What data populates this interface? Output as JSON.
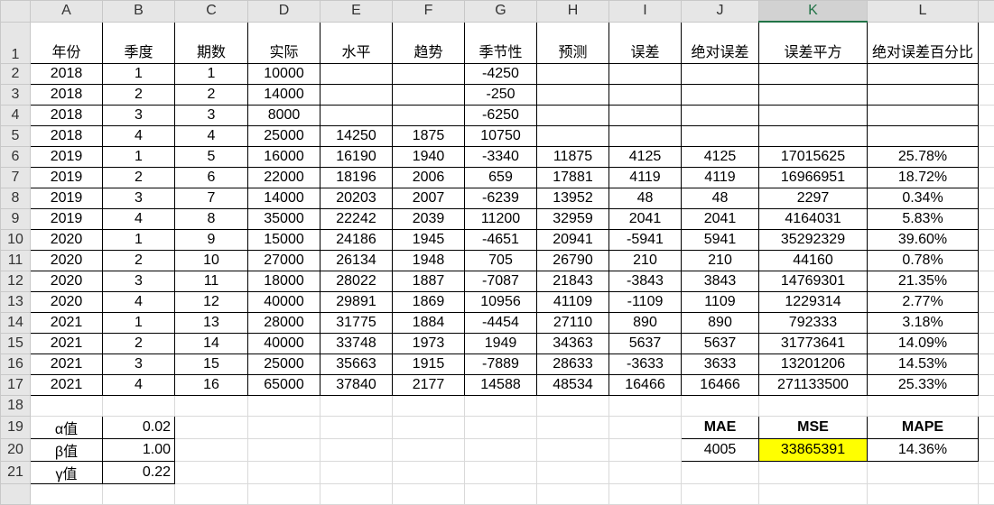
{
  "sheet": {
    "columns": [
      "A",
      "B",
      "C",
      "D",
      "E",
      "F",
      "G",
      "H",
      "I",
      "J",
      "K",
      "L",
      ""
    ],
    "selected_column": "K",
    "headers": [
      "年份",
      "季度",
      "期数",
      "实际",
      "水平",
      "趋势",
      "季节性",
      "预测",
      "误差",
      "绝对误差",
      "误差平方",
      "绝对误差百分比"
    ],
    "rows": [
      [
        "2018",
        "1",
        "1",
        "10000",
        "",
        "",
        "-4250",
        "",
        "",
        "",
        "",
        ""
      ],
      [
        "2018",
        "2",
        "2",
        "14000",
        "",
        "",
        "-250",
        "",
        "",
        "",
        "",
        ""
      ],
      [
        "2018",
        "3",
        "3",
        "8000",
        "",
        "",
        "-6250",
        "",
        "",
        "",
        "",
        ""
      ],
      [
        "2018",
        "4",
        "4",
        "25000",
        "14250",
        "1875",
        "10750",
        "",
        "",
        "",
        "",
        ""
      ],
      [
        "2019",
        "1",
        "5",
        "16000",
        "16190",
        "1940",
        "-3340",
        "11875",
        "4125",
        "4125",
        "17015625",
        "25.78%"
      ],
      [
        "2019",
        "2",
        "6",
        "22000",
        "18196",
        "2006",
        "659",
        "17881",
        "4119",
        "4119",
        "16966951",
        "18.72%"
      ],
      [
        "2019",
        "3",
        "7",
        "14000",
        "20203",
        "2007",
        "-6239",
        "13952",
        "48",
        "48",
        "2297",
        "0.34%"
      ],
      [
        "2019",
        "4",
        "8",
        "35000",
        "22242",
        "2039",
        "11200",
        "32959",
        "2041",
        "2041",
        "4164031",
        "5.83%"
      ],
      [
        "2020",
        "1",
        "9",
        "15000",
        "24186",
        "1945",
        "-4651",
        "20941",
        "-5941",
        "5941",
        "35292329",
        "39.60%"
      ],
      [
        "2020",
        "2",
        "10",
        "27000",
        "26134",
        "1948",
        "705",
        "26790",
        "210",
        "210",
        "44160",
        "0.78%"
      ],
      [
        "2020",
        "3",
        "11",
        "18000",
        "28022",
        "1887",
        "-7087",
        "21843",
        "-3843",
        "3843",
        "14769301",
        "21.35%"
      ],
      [
        "2020",
        "4",
        "12",
        "40000",
        "29891",
        "1869",
        "10956",
        "41109",
        "-1109",
        "1109",
        "1229314",
        "2.77%"
      ],
      [
        "2021",
        "1",
        "13",
        "28000",
        "31775",
        "1884",
        "-4454",
        "27110",
        "890",
        "890",
        "792333",
        "3.18%"
      ],
      [
        "2021",
        "2",
        "14",
        "40000",
        "33748",
        "1973",
        "1949",
        "34363",
        "5637",
        "5637",
        "31773641",
        "14.09%"
      ],
      [
        "2021",
        "3",
        "15",
        "25000",
        "35663",
        "1915",
        "-7889",
        "28633",
        "-3633",
        "3633",
        "13201206",
        "14.53%"
      ],
      [
        "2021",
        "4",
        "16",
        "65000",
        "37840",
        "2177",
        "14588",
        "48534",
        "16466",
        "16466",
        "271133500",
        "25.33%"
      ]
    ],
    "params": [
      {
        "label": "α值",
        "value": "0.02"
      },
      {
        "label": "β值",
        "value": "1.00"
      },
      {
        "label": "γ值",
        "value": "0.22"
      }
    ],
    "metrics": {
      "headers": [
        "MAE",
        "MSE",
        "MAPE"
      ],
      "values": [
        "4005",
        "33865391",
        "14.36%"
      ],
      "highlight_color": "#ffff00"
    }
  }
}
